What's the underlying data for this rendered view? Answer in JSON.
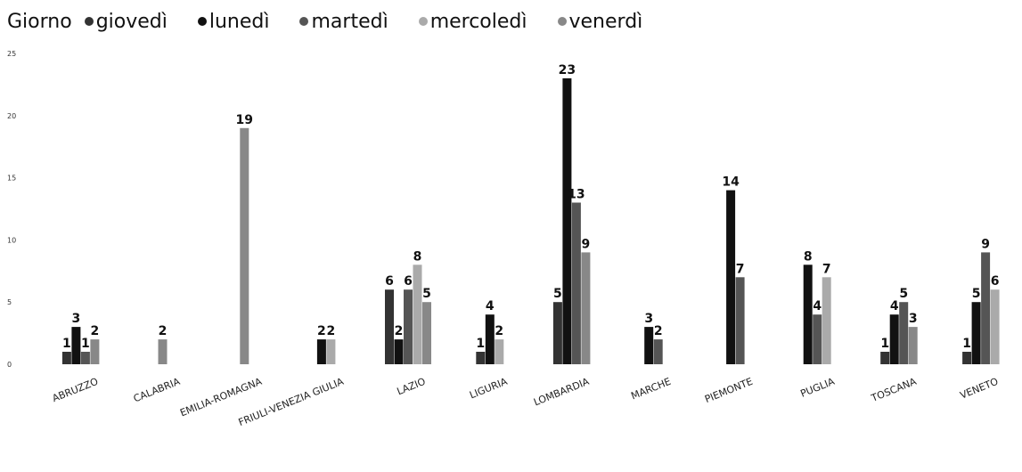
{
  "chart_data": {
    "type": "bar",
    "legend_title": "Giorno",
    "categories": [
      "ABRUZZO",
      "CALABRIA",
      "EMILIA-ROMAGNA",
      "FRIULI-VENEZIA GIULIA",
      "LAZIO",
      "LIGURIA",
      "LOMBARDIA",
      "MARCHE",
      "PIEMONTE",
      "PUGLIA",
      "TOSCANA",
      "VENETO"
    ],
    "series": [
      {
        "name": "giovedì",
        "color": "#333333",
        "values": [
          1,
          null,
          null,
          null,
          6,
          1,
          5,
          null,
          null,
          null,
          1,
          1
        ]
      },
      {
        "name": "lunedì",
        "color": "#111111",
        "values": [
          3,
          null,
          null,
          2,
          2,
          4,
          23,
          3,
          14,
          8,
          4,
          5
        ]
      },
      {
        "name": "martedì",
        "color": "#555555",
        "values": [
          1,
          null,
          null,
          null,
          6,
          null,
          13,
          2,
          7,
          4,
          5,
          9
        ]
      },
      {
        "name": "mercoledì",
        "color": "#aaaaaa",
        "values": [
          null,
          null,
          null,
          2,
          8,
          2,
          null,
          null,
          null,
          7,
          null,
          6
        ]
      },
      {
        "name": "venerdì",
        "color": "#888888",
        "values": [
          2,
          2,
          19,
          null,
          5,
          null,
          9,
          null,
          null,
          null,
          3,
          null
        ]
      }
    ],
    "y_ticks": [
      "0",
      "5",
      "10",
      "15",
      "20",
      "25"
    ],
    "ylim": [
      0,
      25
    ],
    "legend_position": "top-left",
    "grid": false
  }
}
